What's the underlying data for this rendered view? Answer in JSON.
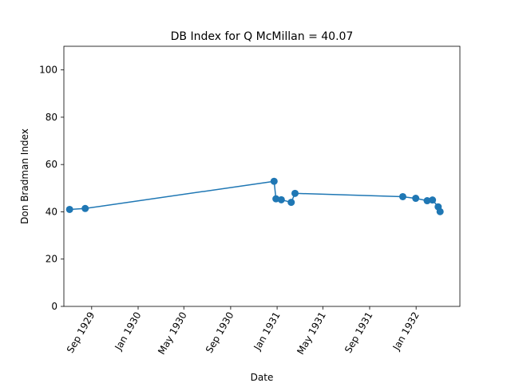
{
  "chart_data": {
    "type": "line",
    "title": "DB Index for Q McMillan = 40.07",
    "xlabel": "Date",
    "ylabel": "Don Bradman Index",
    "ylim": [
      0,
      110
    ],
    "xlim": [
      "1929-06-20",
      "1932-04-25"
    ],
    "yticks": [
      0,
      20,
      40,
      60,
      80,
      100
    ],
    "xticks": [
      {
        "date": "1929-09-01",
        "label": "Sep 1929"
      },
      {
        "date": "1930-01-01",
        "label": "Jan 1930"
      },
      {
        "date": "1930-05-01",
        "label": "May 1930"
      },
      {
        "date": "1930-09-01",
        "label": "Sep 1930"
      },
      {
        "date": "1931-01-01",
        "label": "Jan 1931"
      },
      {
        "date": "1931-05-01",
        "label": "May 1931"
      },
      {
        "date": "1931-09-01",
        "label": "Sep 1931"
      },
      {
        "date": "1932-01-01",
        "label": "Jan 1932"
      }
    ],
    "grid": false,
    "color": "#1f77b4",
    "series": [
      {
        "points": [
          {
            "x": "1929-07-05",
            "y": 41.0
          },
          {
            "x": "1929-08-15",
            "y": 41.4
          },
          {
            "x": "1930-12-24",
            "y": 52.9
          },
          {
            "x": "1930-12-29",
            "y": 45.5
          },
          {
            "x": "1931-01-12",
            "y": 45.1
          },
          {
            "x": "1931-02-07",
            "y": 44.0
          },
          {
            "x": "1931-02-17",
            "y": 47.8
          },
          {
            "x": "1931-11-27",
            "y": 46.4
          },
          {
            "x": "1931-12-31",
            "y": 45.7
          },
          {
            "x": "1932-01-30",
            "y": 44.7
          },
          {
            "x": "1932-02-13",
            "y": 45.0
          },
          {
            "x": "1932-02-28",
            "y": 42.1
          },
          {
            "x": "1932-03-04",
            "y": 40.07
          }
        ]
      }
    ]
  }
}
